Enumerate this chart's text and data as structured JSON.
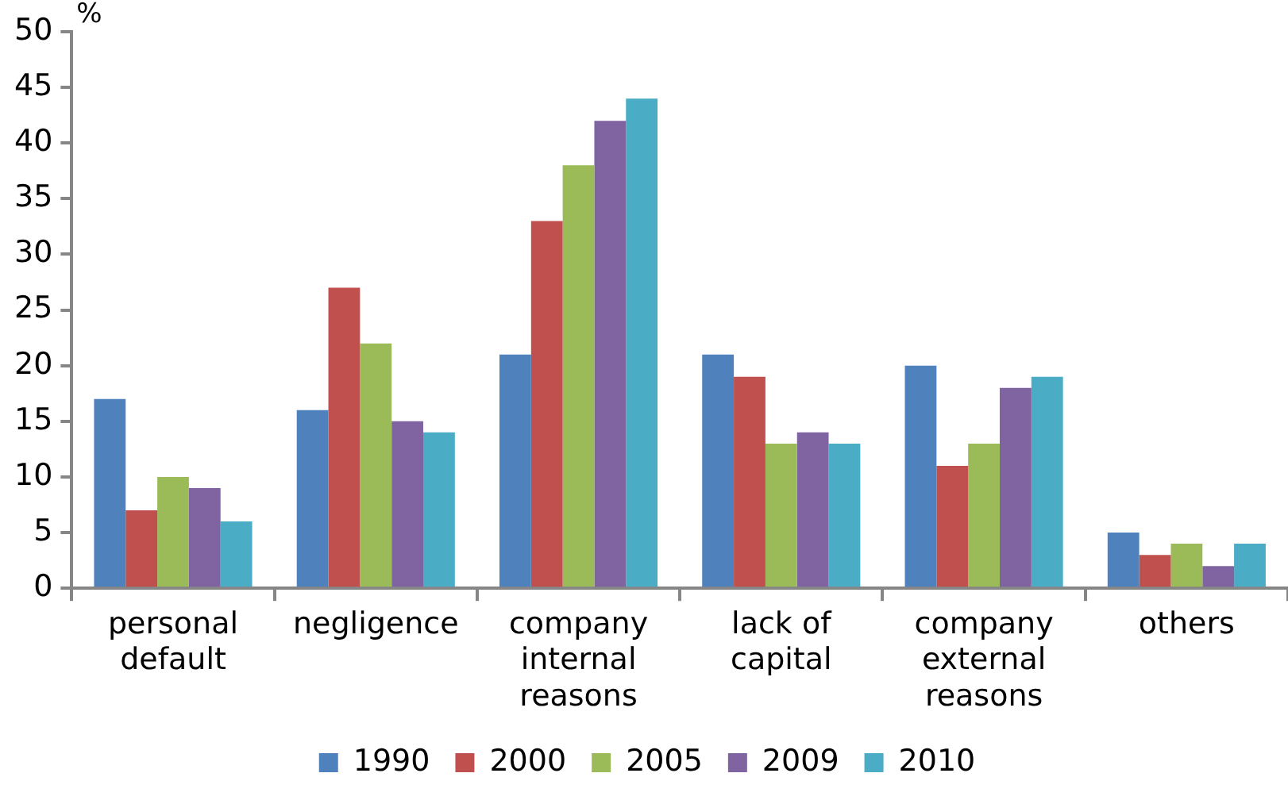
{
  "chart_data": {
    "type": "bar",
    "ylabel": "%",
    "categories": [
      "personal default",
      "negligence",
      "company internal reasons",
      "lack of capital",
      "company external reasons",
      "others"
    ],
    "series": [
      {
        "name": "1990",
        "color": "#4f81bd",
        "values": [
          17,
          16,
          21,
          21,
          20,
          5
        ]
      },
      {
        "name": "2000",
        "color": "#c0504d",
        "values": [
          7,
          27,
          33,
          19,
          11,
          3
        ]
      },
      {
        "name": "2005",
        "color": "#9bbb59",
        "values": [
          10,
          22,
          38,
          13,
          13,
          4
        ]
      },
      {
        "name": "2009",
        "color": "#8064a2",
        "values": [
          9,
          15,
          42,
          14,
          18,
          2
        ]
      },
      {
        "name": "2010",
        "color": "#4bacc6",
        "values": [
          6,
          14,
          44,
          13,
          19,
          4
        ]
      }
    ],
    "ylim": [
      0,
      50
    ],
    "yticks": [
      0,
      5,
      10,
      15,
      20,
      25,
      30,
      35,
      40,
      45,
      50
    ],
    "grid": false,
    "legend": "bottom"
  }
}
